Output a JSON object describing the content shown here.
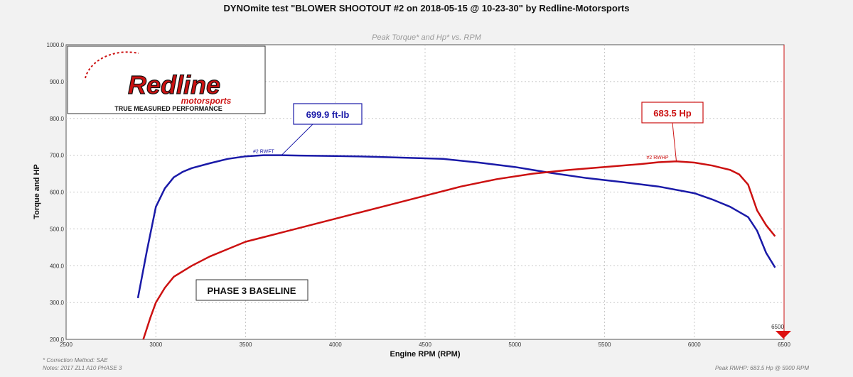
{
  "chart_data": {
    "type": "line",
    "title": "DYNOmite test \"BLOWER SHOOTOUT #2 on 2018-05-15 @ 10-23-30\" by Redline-Motorsports",
    "subtitle": "Peak Torque* and Hp* vs. RPM",
    "xlabel": "Engine RPM (RPM)",
    "ylabel": "Torque and HP",
    "xlim": [
      2500,
      6500
    ],
    "ylim": [
      200,
      1000
    ],
    "x_ticks": [
      "2500",
      "3000",
      "3500",
      "4000",
      "4500",
      "5000",
      "5500",
      "6000",
      "6500"
    ],
    "y_ticks": [
      "200.0",
      "300.0",
      "400.0",
      "500.0",
      "600.0",
      "700.0",
      "800.0",
      "900.0",
      "1000.0"
    ],
    "grid": true,
    "end_marker_label": "6500",
    "series": [
      {
        "name": "#2 RWFT",
        "color": "#1a1aa8",
        "x": [
          2900,
          2950,
          3000,
          3050,
          3100,
          3150,
          3200,
          3300,
          3400,
          3500,
          3600,
          3700,
          3800,
          4000,
          4200,
          4400,
          4600,
          4800,
          5000,
          5200,
          5400,
          5600,
          5800,
          6000,
          6100,
          6200,
          6300,
          6350,
          6400,
          6450
        ],
        "y": [
          312,
          440,
          560,
          610,
          640,
          655,
          665,
          678,
          690,
          697,
          700,
          700,
          699,
          698,
          696,
          693,
          690,
          680,
          668,
          652,
          638,
          627,
          615,
          597,
          580,
          560,
          532,
          495,
          435,
          395
        ]
      },
      {
        "name": "#2 RWHP",
        "color": "#cc1111",
        "x": [
          2930,
          2970,
          3000,
          3050,
          3100,
          3200,
          3300,
          3400,
          3500,
          3700,
          3900,
          4100,
          4300,
          4500,
          4700,
          4900,
          5100,
          5300,
          5500,
          5700,
          5800,
          5900,
          6000,
          6100,
          6200,
          6250,
          6300,
          6350,
          6400,
          6450
        ],
        "y": [
          200,
          260,
          300,
          340,
          370,
          400,
          425,
          445,
          465,
          490,
          515,
          540,
          565,
          590,
          615,
          635,
          650,
          660,
          668,
          676,
          681,
          683.5,
          680,
          672,
          660,
          648,
          620,
          550,
          510,
          480
        ]
      }
    ],
    "annotations": {
      "torque_peak": {
        "label": "699.9 ft-lb",
        "x": 3700,
        "y": 699.9
      },
      "hp_peak": {
        "label": "683.5 Hp",
        "x": 5900,
        "y": 683.5
      },
      "phase_label": "PHASE 3 BASELINE"
    },
    "notes": {
      "correction": "* Correction Method: SAE",
      "notes_line": "Notes: 2017 ZL1 A10 PHASE 3",
      "peak_line": "Peak RWHP: 683.5 Hp @ 5900 RPM"
    }
  },
  "logo": {
    "main_text": "Redline",
    "sub_text": "motorsports",
    "tagline": "TRUE MEASURED PERFORMANCE"
  }
}
